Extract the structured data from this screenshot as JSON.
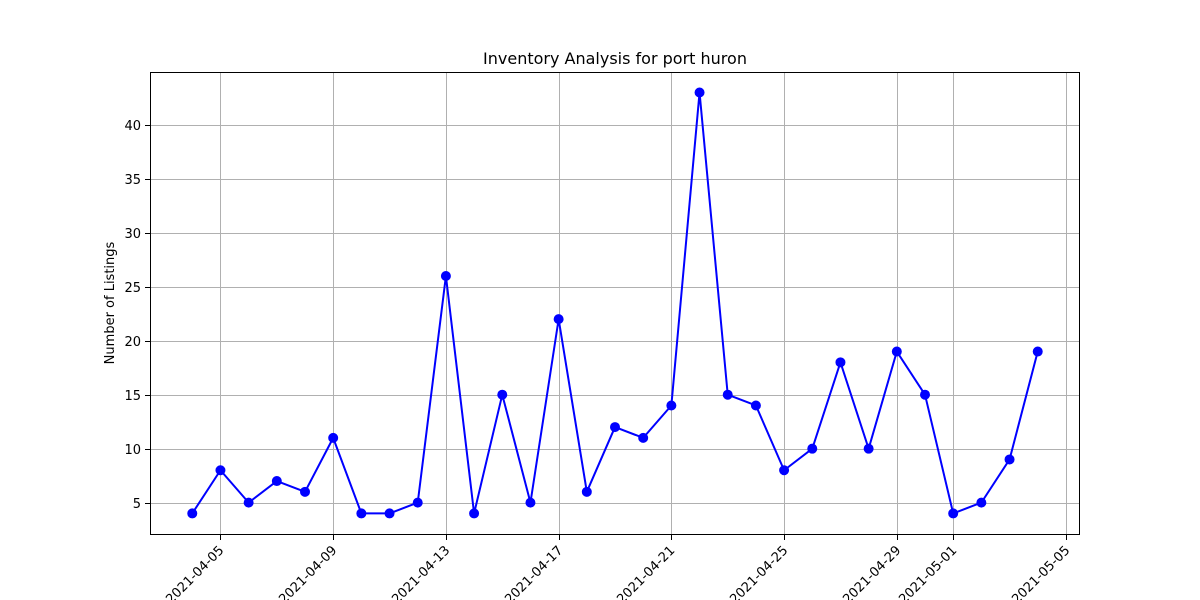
{
  "chart_data": {
    "type": "line",
    "title": "Inventory Analysis for port huron",
    "xlabel": "",
    "ylabel": "Number of Listings",
    "x": [
      "2021-04-04",
      "2021-04-05",
      "2021-04-06",
      "2021-04-07",
      "2021-04-08",
      "2021-04-09",
      "2021-04-10",
      "2021-04-11",
      "2021-04-12",
      "2021-04-13",
      "2021-04-14",
      "2021-04-15",
      "2021-04-16",
      "2021-04-17",
      "2021-04-18",
      "2021-04-19",
      "2021-04-20",
      "2021-04-21",
      "2021-04-22",
      "2021-04-23",
      "2021-04-24",
      "2021-04-25",
      "2021-04-26",
      "2021-04-27",
      "2021-04-28",
      "2021-04-29",
      "2021-04-30",
      "2021-05-01",
      "2021-05-02",
      "2021-05-03",
      "2021-05-04"
    ],
    "series": [
      {
        "values": [
          4,
          8,
          5,
          7,
          6,
          11,
          4,
          4,
          5,
          26,
          4,
          15,
          5,
          22,
          6,
          12,
          11,
          14,
          43,
          15,
          14,
          8,
          10,
          18,
          10,
          19,
          15,
          4,
          5,
          9,
          19
        ]
      }
    ],
    "xlim": [
      "2021-04-02.5",
      "2021-05-05.5"
    ],
    "ylim": [
      2,
      44.9
    ],
    "x_ticks": [
      "2021-04-05",
      "2021-04-09",
      "2021-04-13",
      "2021-04-17",
      "2021-04-21",
      "2021-04-25",
      "2021-04-29",
      "2021-05-01",
      "2021-05-05"
    ],
    "y_ticks": [
      5,
      10,
      15,
      20,
      25,
      30,
      35,
      40
    ],
    "grid": true,
    "line_color": "#0000ff",
    "marker": "circle"
  }
}
